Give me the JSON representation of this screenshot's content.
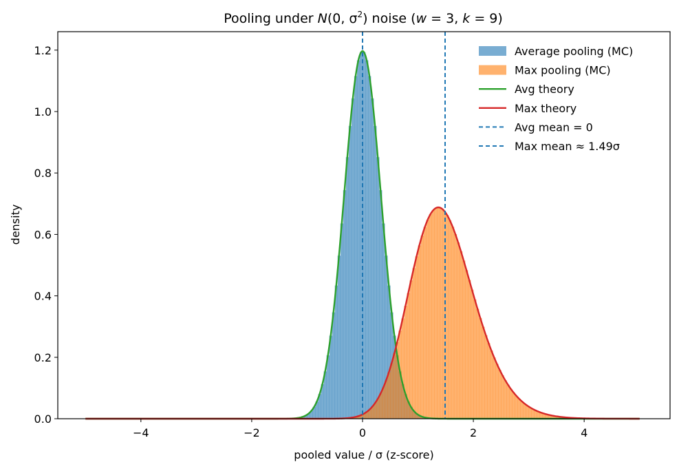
{
  "chart_data": {
    "type": "histogram+line",
    "title": "Pooling under N(0, σ²) noise  (w = 3, k = 9)",
    "title_parts": {
      "prefix": "Pooling under ",
      "dist_N": "N",
      "dist_args": "(0, σ",
      "dist_exp": "2",
      "dist_close": ") noise  (",
      "w": "w",
      "w_val": " = 3, ",
      "k": "k",
      "k_val": " = 9)"
    },
    "xlabel": "pooled value / σ  (z-score)",
    "ylabel": "density",
    "xlim": [
      -5.5,
      5.55
    ],
    "ylim": [
      0,
      1.26
    ],
    "xticks": [
      -4,
      -2,
      0,
      2,
      4
    ],
    "xtick_labels": [
      "−4",
      "−2",
      "0",
      "2",
      "4"
    ],
    "yticks": [
      0.0,
      0.2,
      0.4,
      0.6,
      0.8,
      1.0,
      1.2
    ],
    "ytick_labels": [
      "0.0",
      "0.2",
      "0.4",
      "0.6",
      "0.8",
      "1.0",
      "1.2"
    ],
    "pool_size": 9,
    "avg_mean": 0,
    "max_mean": 1.49,
    "curve_range": [
      -5,
      5
    ],
    "series": [
      {
        "name": "Average pooling (MC)",
        "kind": "histogram",
        "distribution": "avg",
        "color": "#1f77b4",
        "opacity": 0.6
      },
      {
        "name": "Max pooling (MC)",
        "kind": "histogram",
        "distribution": "max",
        "color": "#ff7f0e",
        "opacity": 0.6
      },
      {
        "name": "Avg theory",
        "kind": "line",
        "distribution": "avg",
        "color": "#2ca02c"
      },
      {
        "name": "Max theory",
        "kind": "line",
        "distribution": "max",
        "color": "#d62728"
      },
      {
        "name": "Avg mean = 0",
        "kind": "vline",
        "x": 0,
        "color": "#1f77b4",
        "dashed": true
      },
      {
        "name": "Max mean ≈ 1.49σ",
        "kind": "vline",
        "x": 1.49,
        "color": "#1f77b4",
        "dashed": true
      }
    ],
    "legend": {
      "position": "top-right",
      "entries": [
        "Average pooling (MC)",
        "Max pooling (MC)",
        "Avg theory",
        "Max theory",
        "Avg mean = 0",
        "Max mean ≈ 1.49σ"
      ]
    }
  }
}
